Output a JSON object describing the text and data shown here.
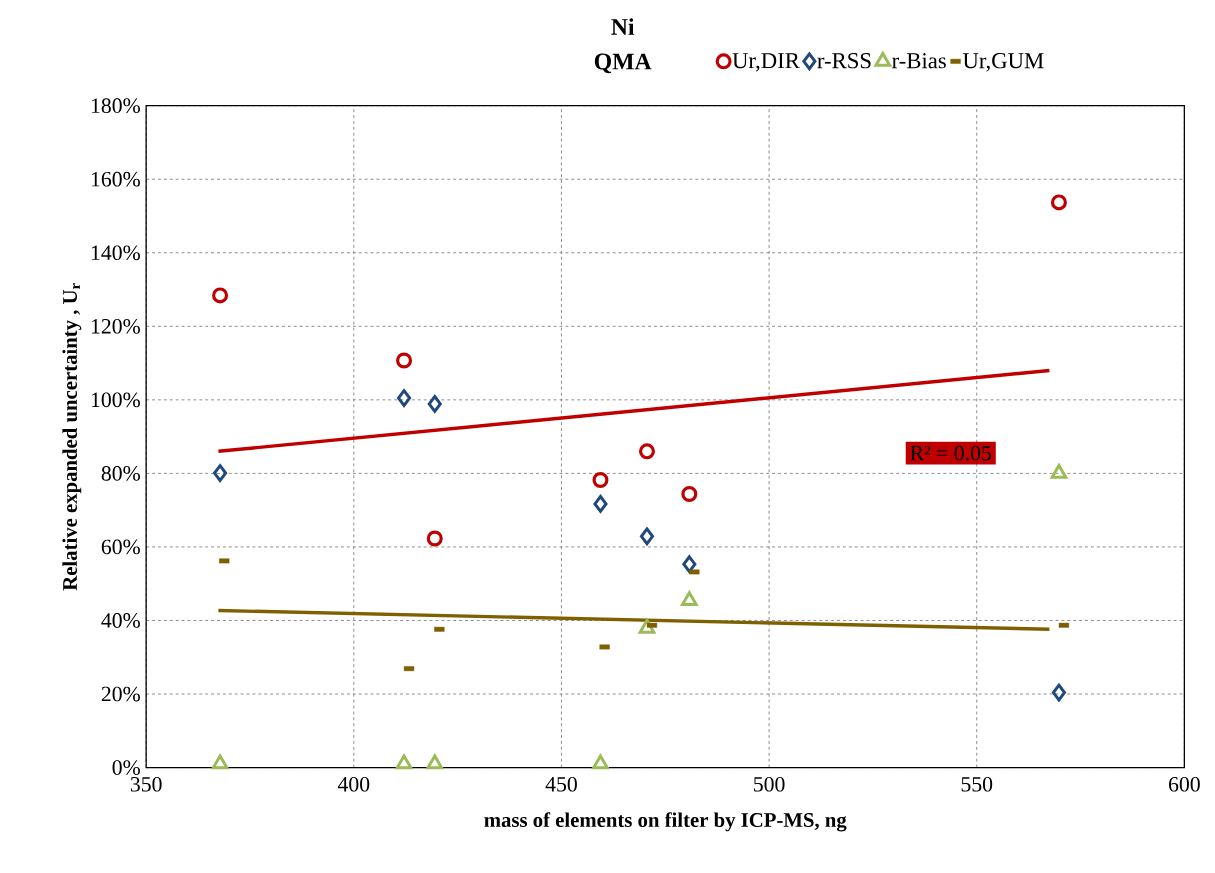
{
  "chart_data": {
    "type": "scatter",
    "title": "Ni",
    "subtitle": "QMA",
    "xlabel": "mass of elements on filter by ICP-MS, ng",
    "ylabel": "Relative expanded uncertainty , U$_{r}$",
    "xlim": [
      350,
      600
    ],
    "xticks": [
      350,
      400,
      450,
      500,
      550,
      600
    ],
    "ylim": [
      0,
      180
    ],
    "yticks": [
      {
        "value": 0,
        "label": "0%"
      },
      {
        "value": 20,
        "label": "20%"
      },
      {
        "value": 40,
        "label": "40%"
      },
      {
        "value": 60,
        "label": "60%"
      },
      {
        "value": 80,
        "label": "80%"
      },
      {
        "value": 100,
        "label": "100%"
      },
      {
        "value": 120,
        "label": "120%"
      },
      {
        "value": 140,
        "label": "140%"
      },
      {
        "value": 160,
        "label": "160%"
      },
      {
        "value": 180,
        "label": "180%"
      }
    ],
    "grid": true,
    "legend": "top",
    "annotations": [
      "R² = 0.05"
    ],
    "series": [
      {
        "name": "Ur,DIR",
        "color": "#c00000",
        "marker": "circle",
        "x": [
          367.8,
          412.1,
          419.5,
          459.4,
          470.6,
          480.8,
          569.8
        ],
        "values": [
          128.4,
          110.7,
          62.3,
          78.2,
          86.0,
          74.4,
          153.7
        ]
      },
      {
        "name": "r-RSS",
        "color": "#1f497d",
        "marker": "diamond",
        "x": [
          367.8,
          412.1,
          419.5,
          459.4,
          470.6,
          480.8,
          569.8
        ],
        "values": [
          80.1,
          100.5,
          98.9,
          71.7,
          62.9,
          55.3,
          20.4
        ]
      },
      {
        "name": "r-Bias",
        "color": "#9bbb59",
        "marker": "triangle",
        "x": [
          367.8,
          412.1,
          419.5,
          459.4,
          470.6,
          480.8,
          569.8
        ],
        "values": [
          1,
          1,
          1,
          1,
          37.9,
          45.4,
          80.0
        ]
      },
      {
        "name": "Ur,GUM",
        "color": "#7f6000",
        "marker": "square",
        "x": [
          368.8,
          413.3,
          420.6,
          460.4,
          471.8,
          482.0,
          571.0
        ],
        "values": [
          56.2,
          26.9,
          37.6,
          32.8,
          38.7,
          53.2,
          38.7
        ]
      },
      {
        "type": "line",
        "color": "#c00000",
        "marker": "none",
        "x": [
          367.4,
          567.5
        ],
        "values": [
          86.0,
          108.0
        ]
      },
      {
        "type": "line",
        "color": "#7f6000",
        "marker": "none",
        "x": [
          367.4,
          567.5
        ],
        "values": [
          42.7,
          37.6
        ]
      }
    ]
  }
}
